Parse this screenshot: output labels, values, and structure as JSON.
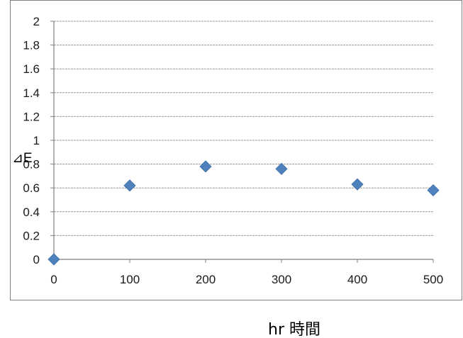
{
  "chart_data": {
    "type": "scatter",
    "title": "",
    "xlabel": "hr 時間",
    "ylabel": "⊿E",
    "xlim": [
      0,
      500
    ],
    "ylim": [
      0,
      2
    ],
    "x_ticks": [
      "0",
      "100",
      "200",
      "300",
      "400",
      "500"
    ],
    "y_ticks": [
      "0",
      "0.2",
      "0.4",
      "0.6",
      "0.8",
      "1",
      "1.2",
      "1.4",
      "1.6",
      "1.8",
      "2"
    ],
    "grid": true,
    "legend": "none",
    "series": [
      {
        "marker": "diamond",
        "color": "#4f81bd",
        "x": [
          0,
          100,
          200,
          300,
          400,
          500
        ],
        "y": [
          0,
          0.62,
          0.78,
          0.76,
          0.63,
          0.58
        ]
      }
    ]
  }
}
